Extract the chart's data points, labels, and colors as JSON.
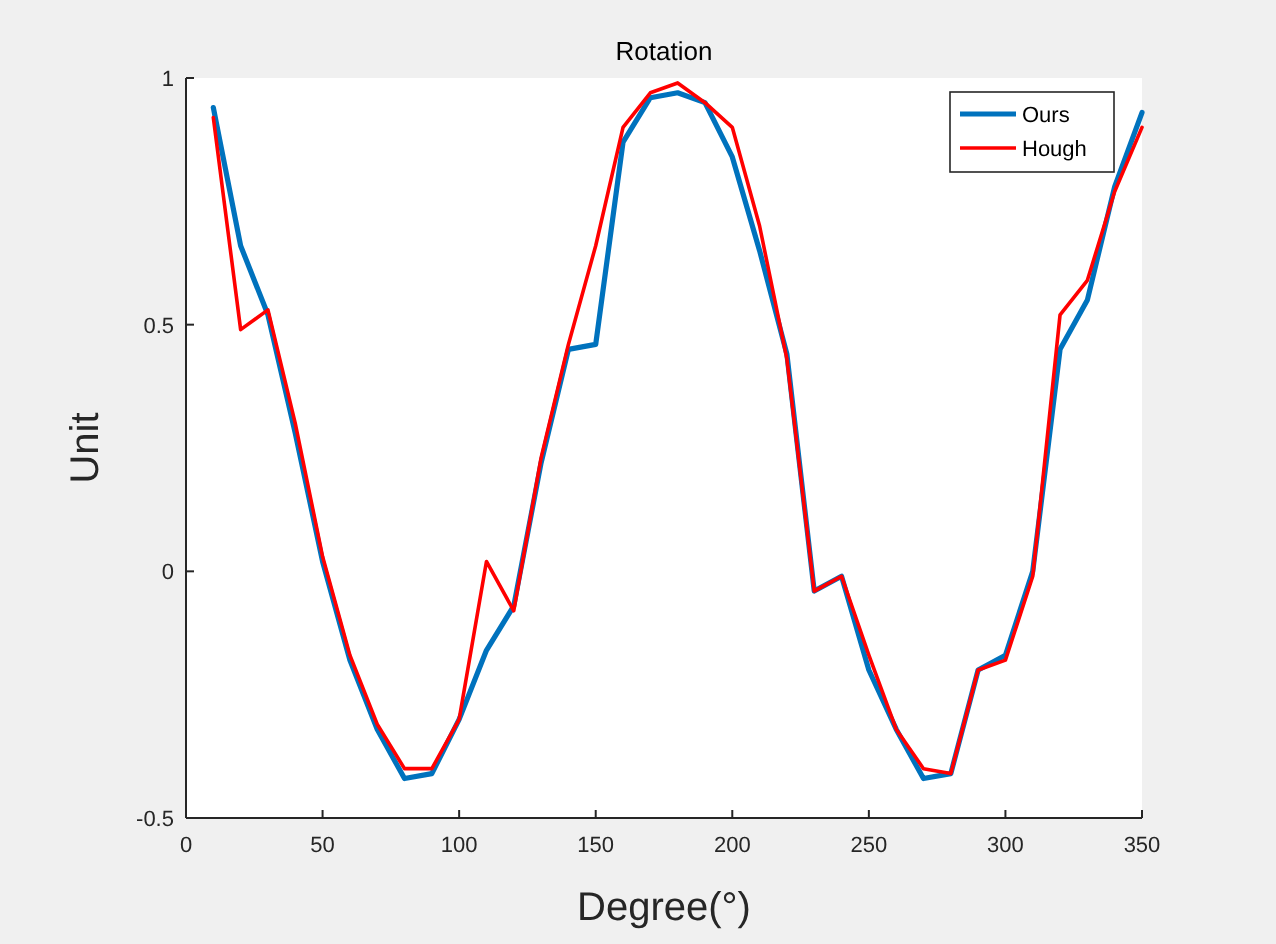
{
  "chart_data": {
    "type": "line",
    "title": "Rotation",
    "xlabel": "Degree(°)",
    "ylabel": "Unit",
    "x": [
      10,
      20,
      30,
      40,
      50,
      60,
      70,
      80,
      90,
      100,
      110,
      120,
      130,
      140,
      150,
      160,
      170,
      180,
      190,
      200,
      210,
      220,
      230,
      240,
      250,
      260,
      270,
      280,
      290,
      300,
      310,
      320,
      330,
      340,
      350
    ],
    "series": [
      {
        "name": "Ours",
        "color": "#0072bd",
        "values": [
          0.94,
          0.66,
          0.52,
          0.28,
          0.02,
          -0.18,
          -0.32,
          -0.42,
          -0.41,
          -0.3,
          -0.16,
          -0.07,
          0.22,
          0.45,
          0.46,
          0.87,
          0.96,
          0.97,
          0.95,
          0.84,
          0.65,
          0.44,
          -0.04,
          -0.01,
          -0.2,
          -0.32,
          -0.42,
          -0.41,
          -0.2,
          -0.17,
          0.0,
          0.45,
          0.55,
          0.78,
          0.93
        ]
      },
      {
        "name": "Hough",
        "color": "#ff0000",
        "values": [
          0.92,
          0.49,
          0.53,
          0.3,
          0.03,
          -0.17,
          -0.31,
          -0.4,
          -0.4,
          -0.3,
          0.02,
          -0.08,
          0.23,
          0.46,
          0.66,
          0.9,
          0.97,
          0.99,
          0.95,
          0.9,
          0.7,
          0.43,
          -0.04,
          -0.01,
          -0.17,
          -0.32,
          -0.4,
          -0.41,
          -0.2,
          -0.18,
          -0.01,
          0.52,
          0.59,
          0.77,
          0.9
        ]
      }
    ],
    "xlim": [
      0,
      350
    ],
    "xticks": [
      0,
      50,
      100,
      150,
      200,
      250,
      300,
      350
    ],
    "ylim": [
      -0.5,
      1
    ],
    "yticks": [
      -0.5,
      0,
      0.5,
      1
    ],
    "grid": false,
    "legend": "top right",
    "line_style": "solid",
    "marker": "none"
  }
}
